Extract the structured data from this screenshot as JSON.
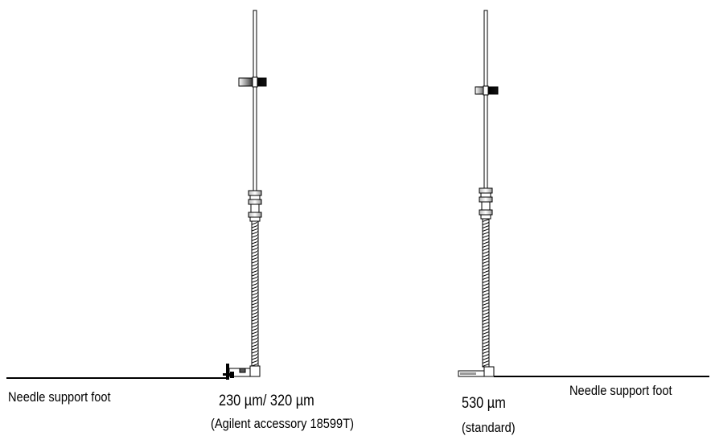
{
  "left_assembly": {
    "foot_label": "Needle support foot",
    "size_label": "230 µm/ 320 µm",
    "note_label": "(Agilent accessory 18599T)"
  },
  "right_assembly": {
    "foot_label": "Needle support foot",
    "size_label": "530 µm",
    "note_label": "(standard)"
  },
  "colors": {
    "line": "#000000",
    "metal": "#ffffff",
    "shade": "#555555"
  }
}
